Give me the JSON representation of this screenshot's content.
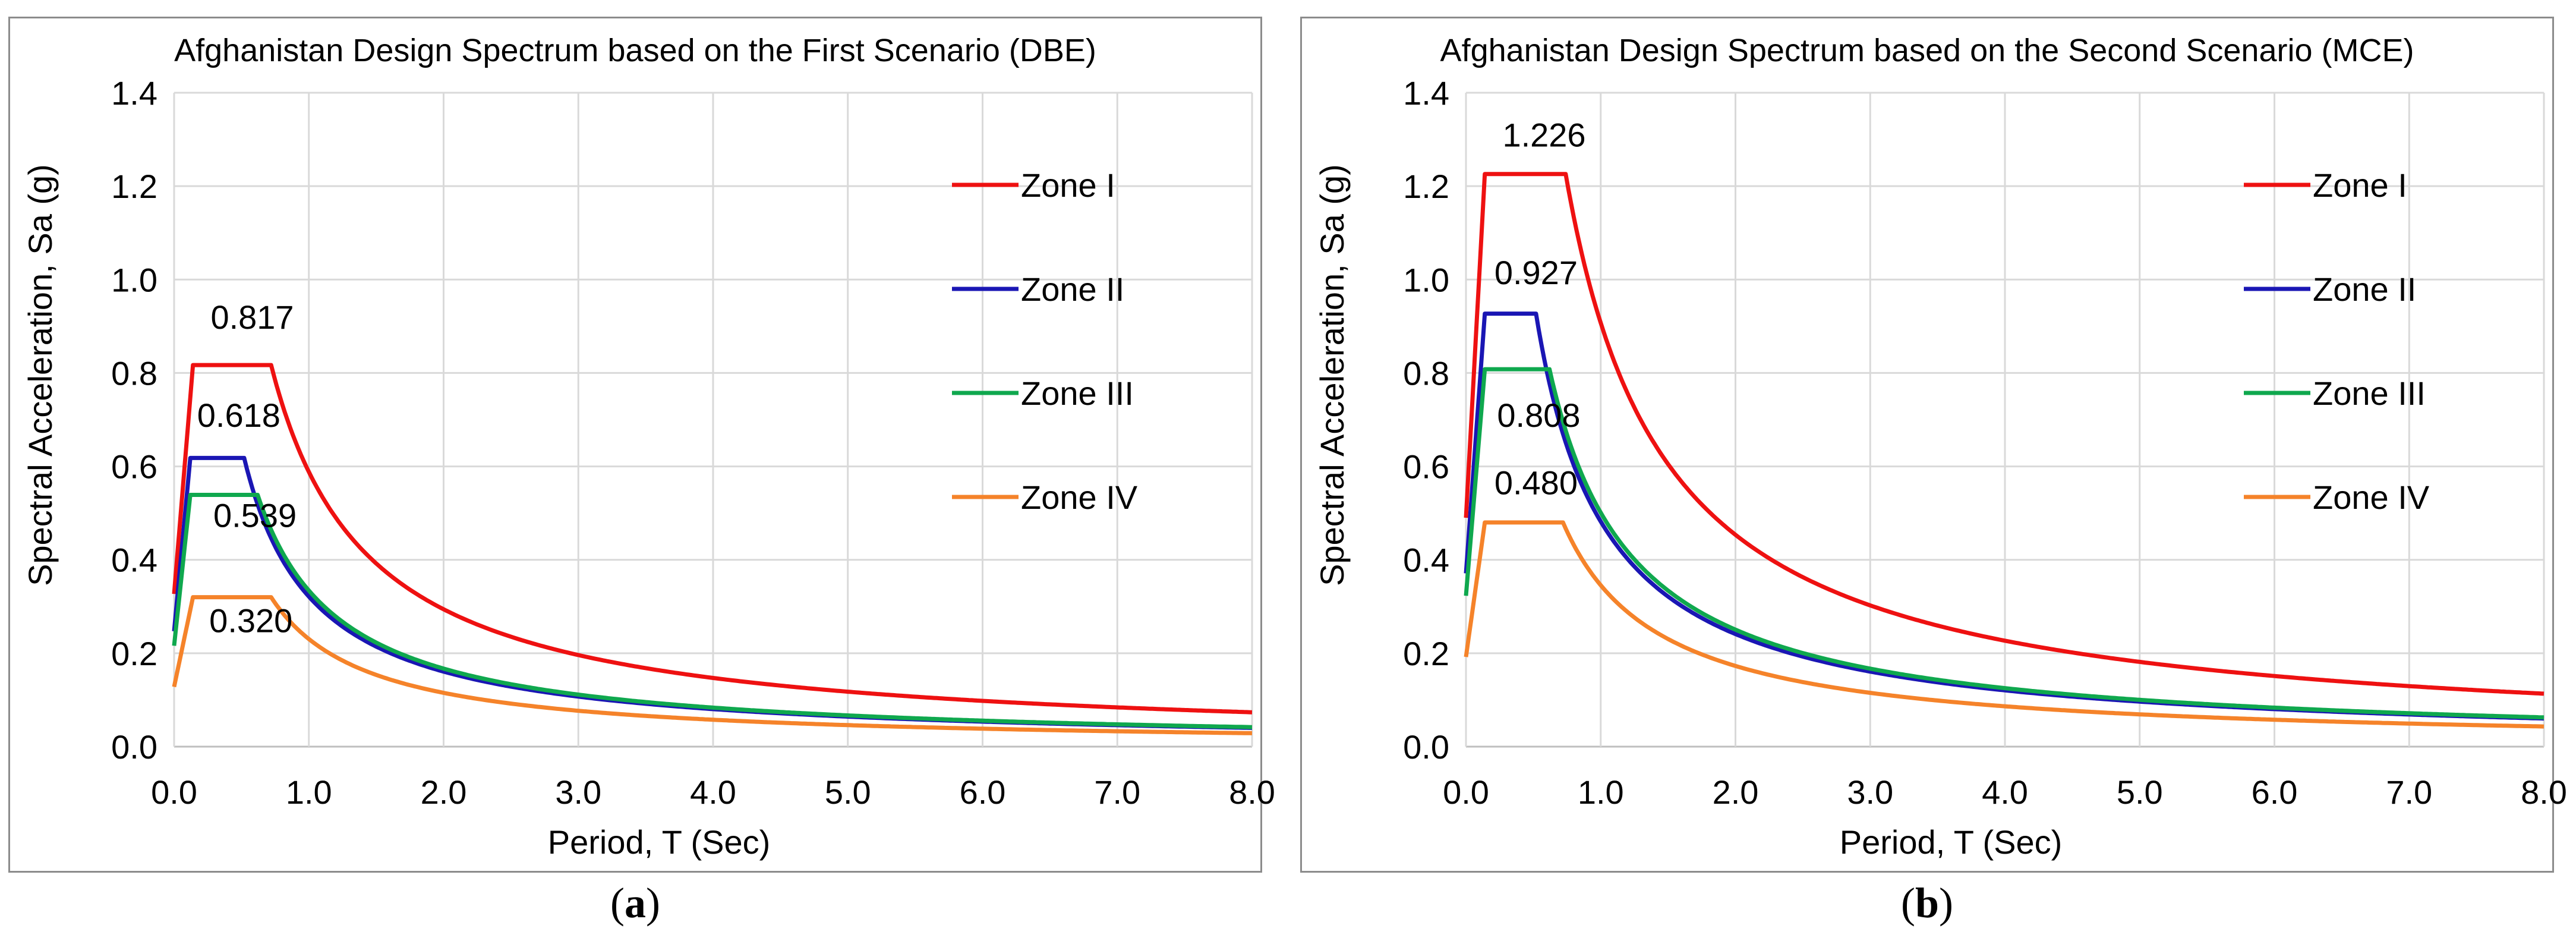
{
  "colors": {
    "zone_i": "#ee1111",
    "zone_ii": "#1a16b4",
    "zone_iii": "#0fa84e",
    "zone_iv": "#f5832a"
  },
  "chart_data": [
    {
      "type": "line",
      "title": "Afghanistan Design Spectrum based on the First Scenario (DBE)",
      "xlabel": "Period, T (Sec)",
      "ylabel": "Spectral Acceleration, Sa (g)",
      "xlim": [
        0,
        8
      ],
      "ylim": [
        0,
        1.4
      ],
      "x_ticks": [
        "0.0",
        "1.0",
        "2.0",
        "3.0",
        "4.0",
        "5.0",
        "6.0",
        "7.0",
        "8.0"
      ],
      "y_ticks": [
        "0.0",
        "0.2",
        "0.4",
        "0.6",
        "0.8",
        "1.0",
        "1.2",
        "1.4"
      ],
      "grid": true,
      "legend_position": "top-right",
      "caption": "a",
      "series": [
        {
          "name": "Zone I",
          "color_key": "zone_i",
          "peak": 0.817,
          "pga": 0.327,
          "t0": 0.14,
          "ts": 0.72
        },
        {
          "name": "Zone II",
          "color_key": "zone_ii",
          "peak": 0.618,
          "pga": 0.247,
          "t0": 0.12,
          "ts": 0.52
        },
        {
          "name": "Zone III",
          "color_key": "zone_iii",
          "peak": 0.539,
          "pga": 0.216,
          "t0": 0.12,
          "ts": 0.62
        },
        {
          "name": "Zone IV",
          "color_key": "zone_iv",
          "peak": 0.32,
          "pga": 0.128,
          "t0": 0.14,
          "ts": 0.72
        }
      ],
      "annotations": [
        {
          "text": "0.817",
          "x": 0.58,
          "y": 0.895
        },
        {
          "text": "0.618",
          "x": 0.48,
          "y": 0.685
        },
        {
          "text": "0.539",
          "x": 0.6,
          "y": 0.47
        },
        {
          "text": "0.320",
          "x": 0.57,
          "y": 0.245
        }
      ]
    },
    {
      "type": "line",
      "title": "Afghanistan Design Spectrum based on the Second Scenario (MCE)",
      "xlabel": "Period, T (Sec)",
      "ylabel": "Spectral Acceleration, Sa (g)",
      "xlim": [
        0,
        8
      ],
      "ylim": [
        0,
        1.4
      ],
      "x_ticks": [
        "0.0",
        "1.0",
        "2.0",
        "3.0",
        "4.0",
        "5.0",
        "6.0",
        "7.0",
        "8.0"
      ],
      "y_ticks": [
        "0.0",
        "0.2",
        "0.4",
        "0.6",
        "0.8",
        "1.0",
        "1.2",
        "1.4"
      ],
      "grid": true,
      "legend_position": "top-right",
      "caption": "b",
      "series": [
        {
          "name": "Zone I",
          "color_key": "zone_i",
          "peak": 1.226,
          "pga": 0.49,
          "t0": 0.14,
          "ts": 0.74
        },
        {
          "name": "Zone II",
          "color_key": "zone_ii",
          "peak": 0.927,
          "pga": 0.371,
          "t0": 0.14,
          "ts": 0.52
        },
        {
          "name": "Zone III",
          "color_key": "zone_iii",
          "peak": 0.808,
          "pga": 0.323,
          "t0": 0.14,
          "ts": 0.62
        },
        {
          "name": "Zone IV",
          "color_key": "zone_iv",
          "peak": 0.48,
          "pga": 0.192,
          "t0": 0.14,
          "ts": 0.72
        }
      ],
      "annotations": [
        {
          "text": "1.226",
          "x": 0.58,
          "y": 1.285
        },
        {
          "text": "0.927",
          "x": 0.52,
          "y": 0.99
        },
        {
          "text": "0.808",
          "x": 0.54,
          "y": 0.685
        },
        {
          "text": "0.480",
          "x": 0.52,
          "y": 0.54
        }
      ]
    }
  ]
}
